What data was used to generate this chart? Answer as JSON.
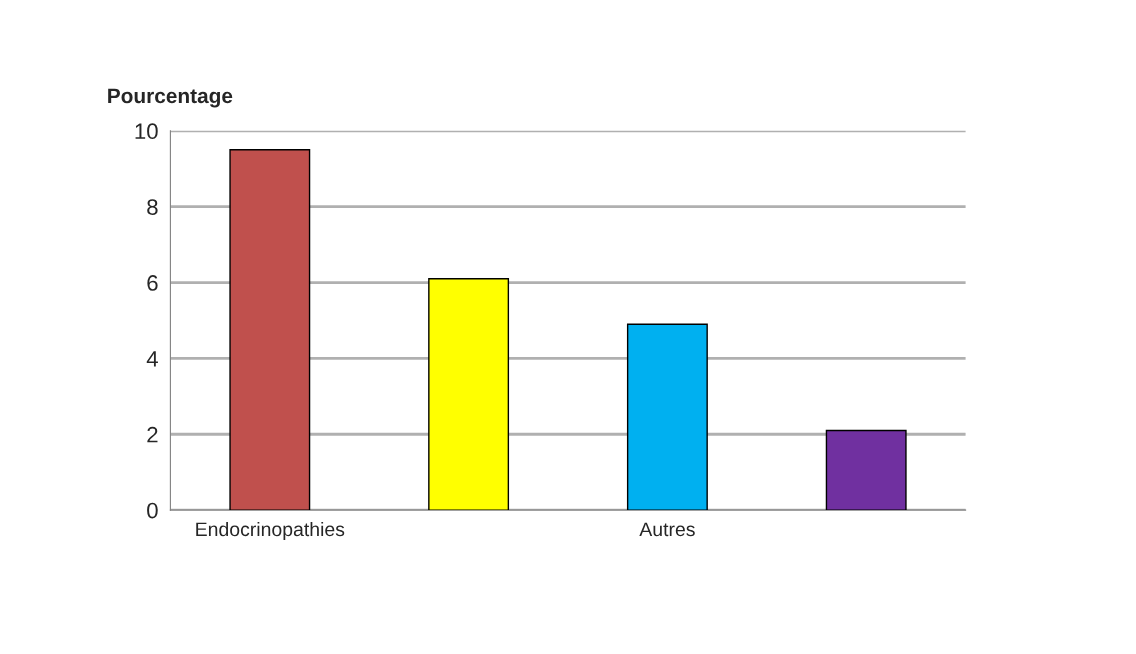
{
  "chart_data": {
    "type": "bar",
    "ylabel": "Pourcentage",
    "categories": [
      "Endocrinopathies",
      null,
      "Autres",
      null
    ],
    "values": [
      9.5,
      6.1,
      4.9,
      2.1
    ],
    "colors": [
      "#c0504d",
      "#ffff00",
      "#00b0f0",
      "#7030a0"
    ],
    "ylim": [
      0,
      10
    ],
    "yticks": [
      0,
      2,
      4,
      6,
      8,
      10
    ],
    "grid": "y"
  }
}
